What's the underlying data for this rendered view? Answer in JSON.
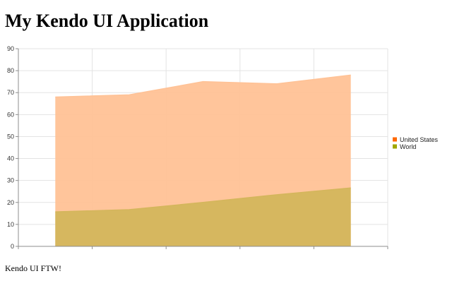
{
  "page": {
    "title": "My Kendo UI Application",
    "footer": "Kendo UI FTW!"
  },
  "chart_data": {
    "type": "area",
    "categories": [
      "",
      "",
      "",
      "",
      ""
    ],
    "x": [
      1,
      2,
      3,
      4,
      5
    ],
    "ylim": [
      0,
      90
    ],
    "yticks": [
      0,
      10,
      20,
      30,
      40,
      50,
      60,
      70,
      80,
      90
    ],
    "grid": true,
    "legend_position": "right",
    "series": [
      {
        "name": "United States",
        "values": [
          68,
          69,
          75,
          74,
          78
        ],
        "color": "#ff6800",
        "fill": "#ffc296"
      },
      {
        "name": "World",
        "values": [
          15.7,
          16.7,
          20,
          23.5,
          26.6
        ],
        "color": "#a0a700",
        "fill": "#d4b65c"
      }
    ]
  }
}
